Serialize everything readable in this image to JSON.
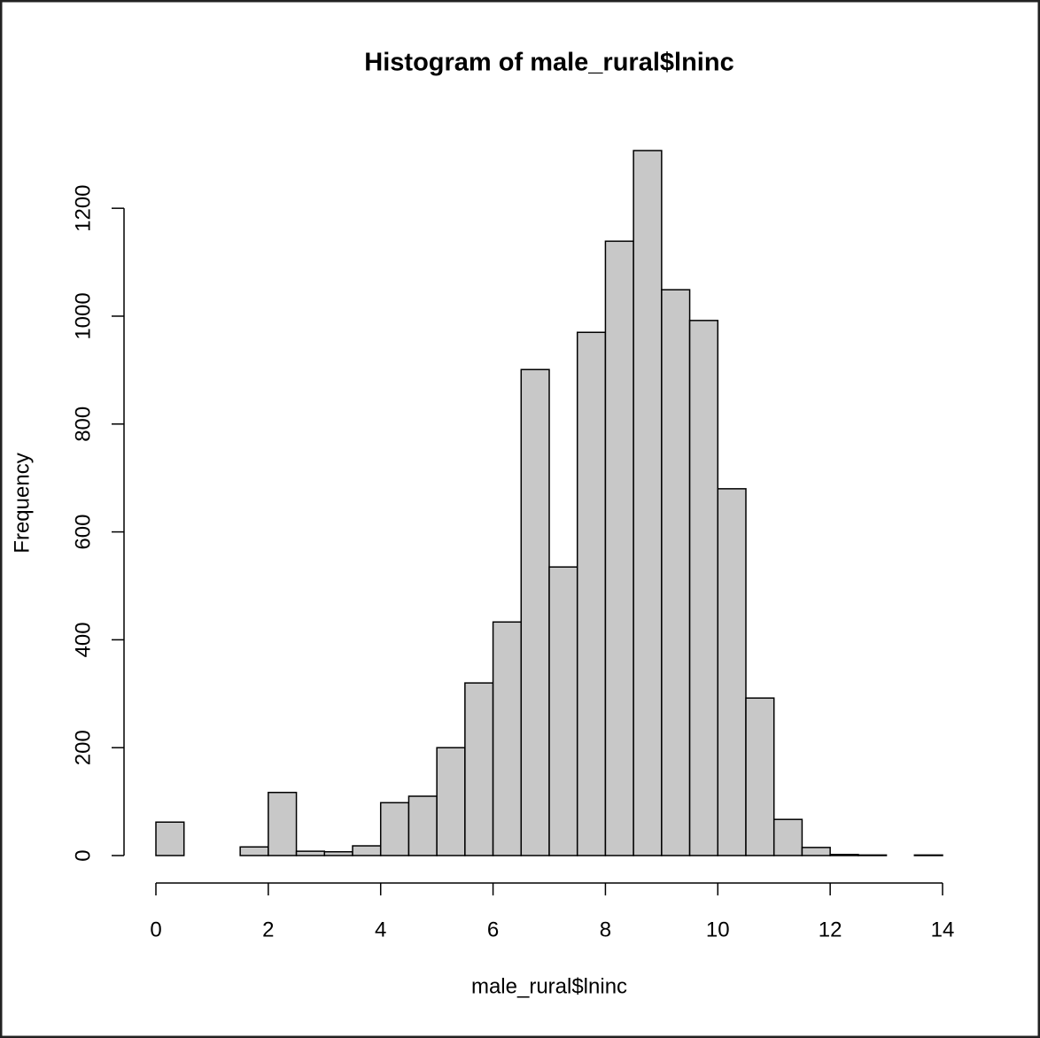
{
  "chart_data": {
    "type": "histogram",
    "title": "Histogram of male_rural$lninc",
    "x_label": "male_rural$lninc",
    "y_label": "Frequency",
    "bins": [
      0,
      0.5,
      1,
      1.5,
      2,
      2.5,
      3,
      3.5,
      4,
      4.5,
      5,
      5.5,
      6,
      6.5,
      7,
      7.5,
      8,
      8.5,
      9,
      9.5,
      10,
      10.5,
      11,
      11.5,
      12,
      12.5,
      13,
      13.5,
      14
    ],
    "counts": [
      62,
      0,
      0,
      16,
      117,
      8,
      7,
      18,
      98,
      110,
      200,
      320,
      433,
      901,
      535,
      970,
      1139,
      1307,
      1049,
      992,
      680,
      292,
      67,
      15,
      2,
      1,
      0,
      1
    ],
    "color": "#c8c8c8",
    "xlim": [
      0,
      14
    ],
    "xticks": [
      0,
      2,
      4,
      6,
      8,
      10,
      12,
      14
    ],
    "ylim": [
      0,
      1307
    ],
    "yticks": [
      0,
      200,
      400,
      600,
      800,
      1000,
      1200
    ]
  }
}
